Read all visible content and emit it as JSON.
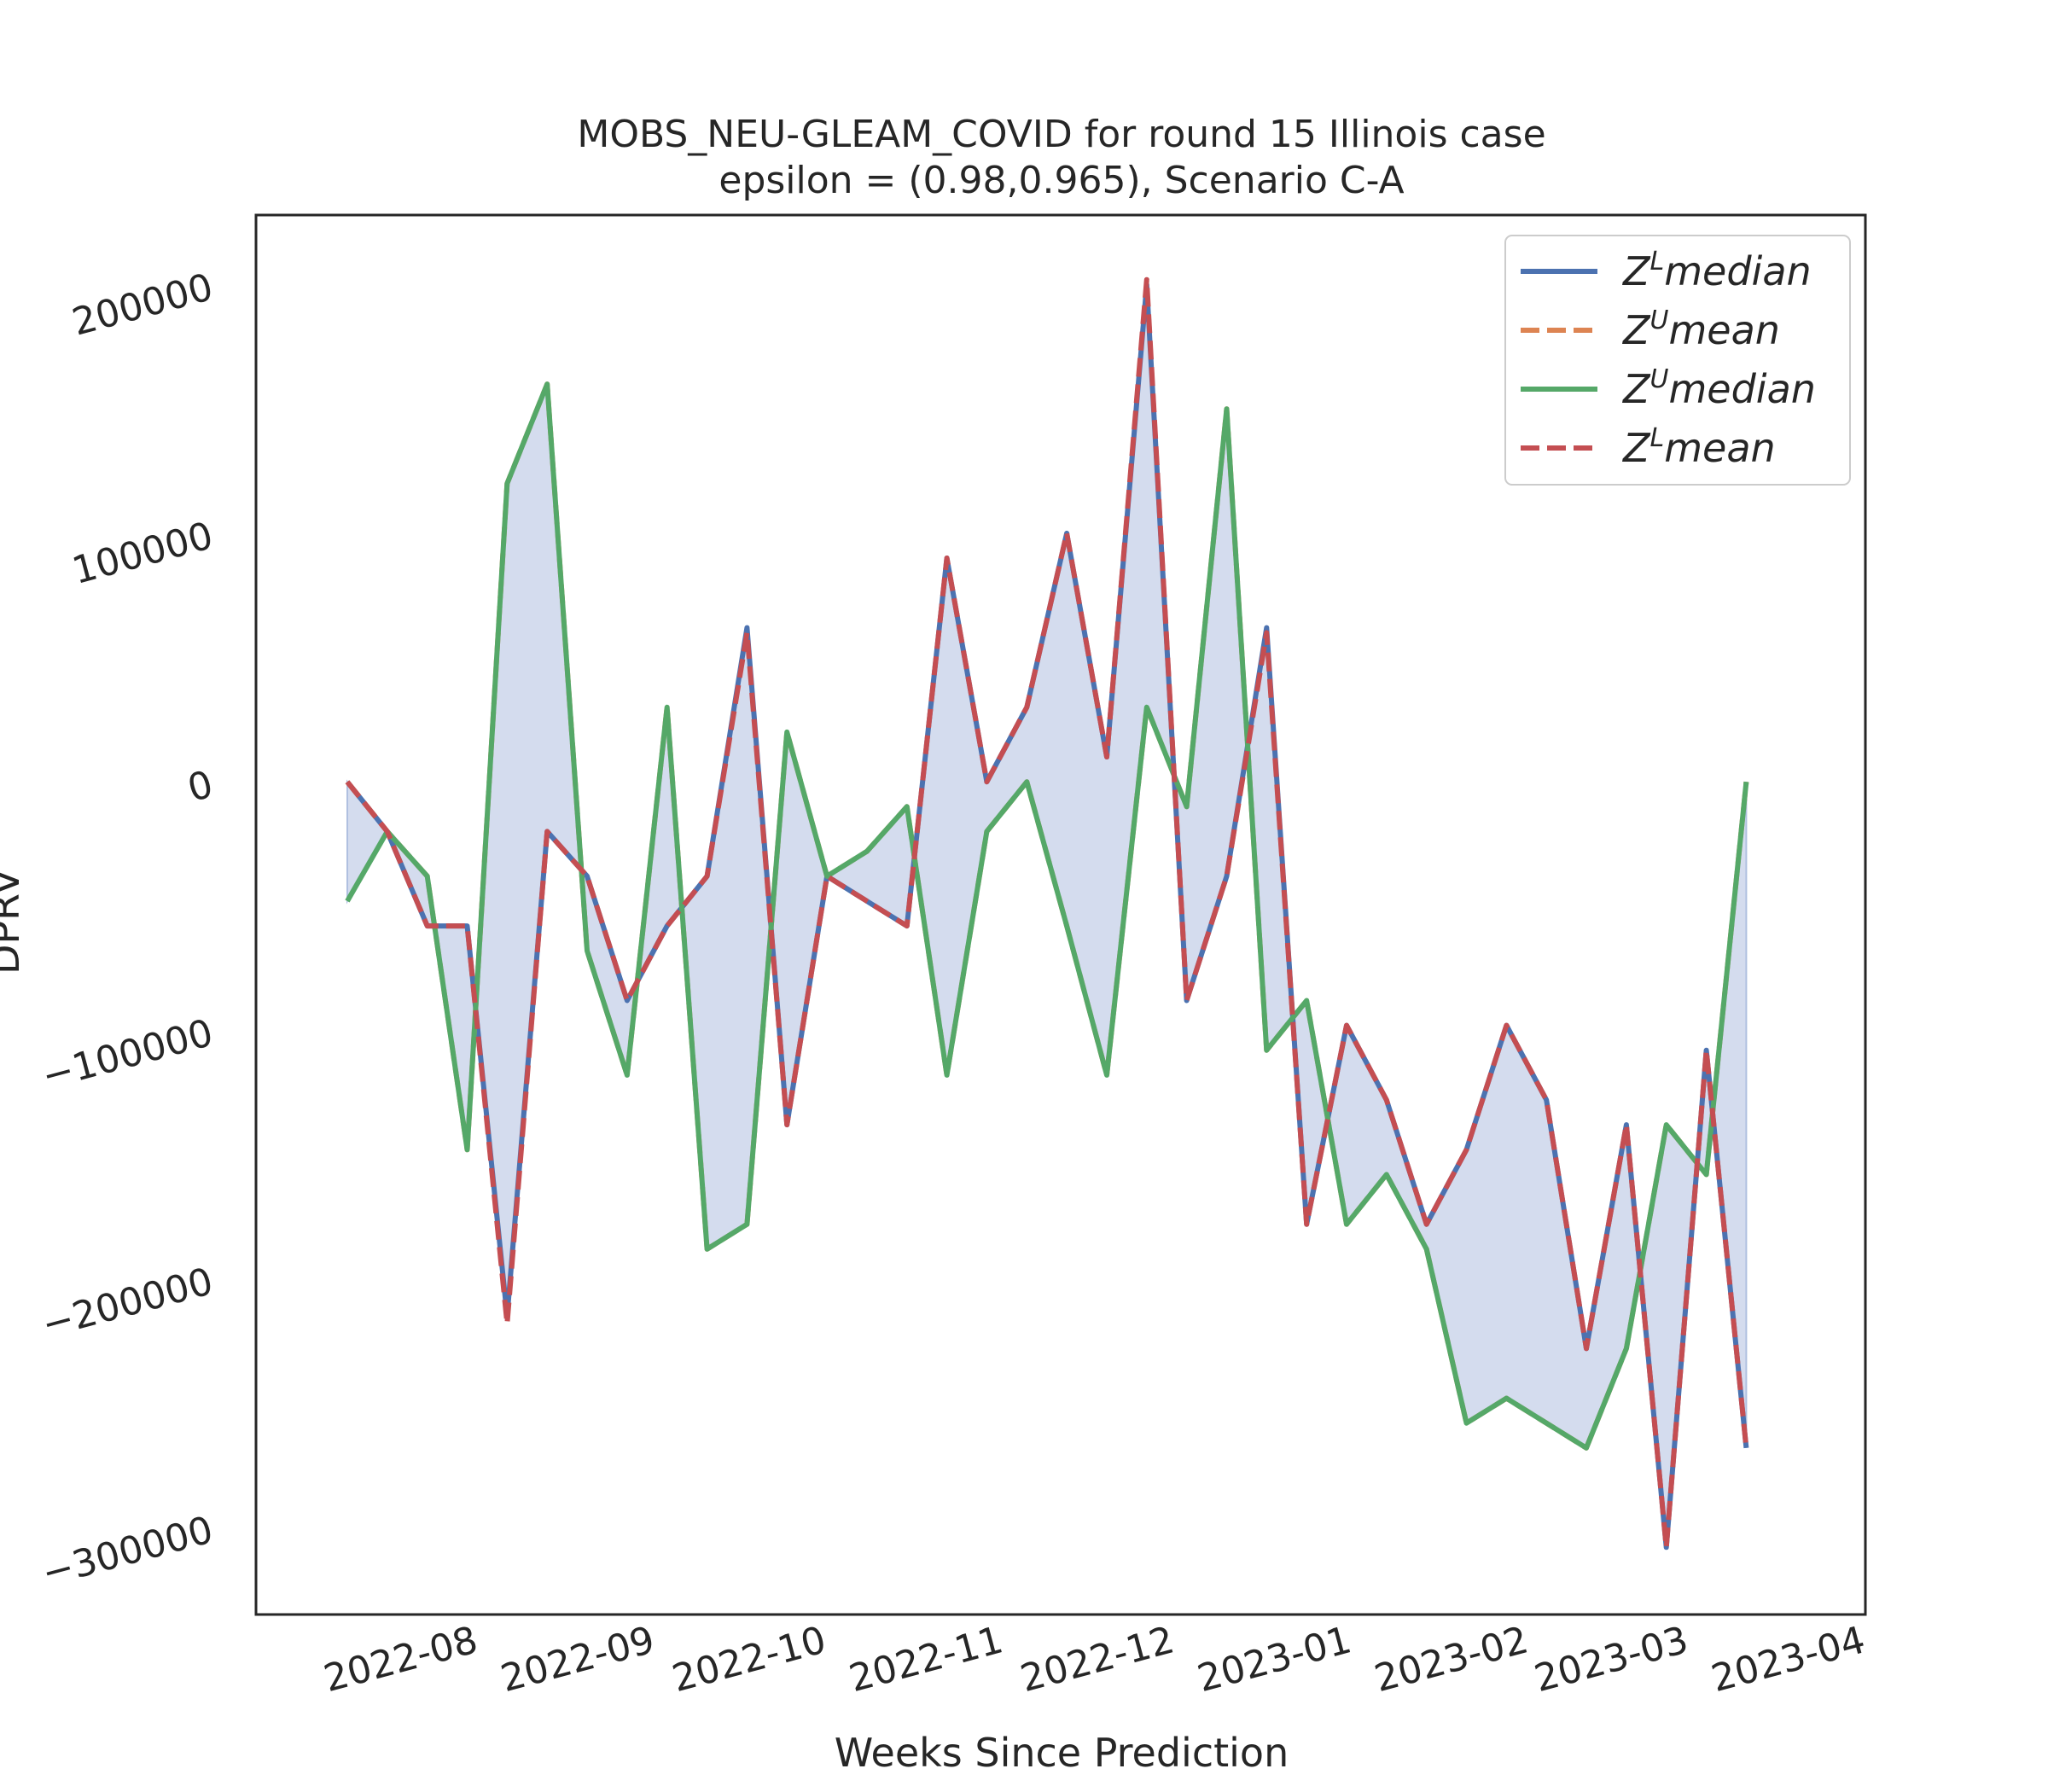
{
  "chart_data": {
    "type": "line",
    "title": "MOBS_NEU-GLEAM_COVID for round 15 Illinois  case",
    "subtitle": "epsilon = (0.98,0.965), Scenario C-A",
    "xlabel": "Weeks Since Prediction",
    "ylabel": "DPRV",
    "x_ticks": [
      "2022-08",
      "2022-09",
      "2022-10",
      "2022-11",
      "2022-12",
      "2023-01",
      "2023-02",
      "2023-03",
      "2023-04"
    ],
    "y_ticks": [
      200000,
      100000,
      0,
      -100000,
      -200000,
      -300000
    ],
    "y_tick_labels": [
      "200000",
      "100000",
      "0",
      "−100000",
      "−200000",
      "−300000"
    ],
    "ylim": [
      -335000,
      228000
    ],
    "x": [
      "2022-07-23",
      "2022-07-30",
      "2022-08-06",
      "2022-08-13",
      "2022-08-20",
      "2022-08-27",
      "2022-09-03",
      "2022-09-10",
      "2022-09-17",
      "2022-09-24",
      "2022-10-01",
      "2022-10-08",
      "2022-10-15",
      "2022-10-22",
      "2022-10-29",
      "2022-11-05",
      "2022-11-12",
      "2022-11-19",
      "2022-11-26",
      "2022-12-03",
      "2022-12-10",
      "2022-12-17",
      "2022-12-24",
      "2022-12-31",
      "2023-01-07",
      "2023-01-14",
      "2023-01-21",
      "2023-01-28",
      "2023-02-04",
      "2023-02-11",
      "2023-02-18",
      "2023-02-25",
      "2023-03-04",
      "2023-03-11",
      "2023-03-18",
      "2023-03-25"
    ],
    "series": [
      {
        "name": "median",
        "sup": "L",
        "color": "#4c72b0",
        "style": "solid",
        "values": [
          0,
          -20000,
          -58000,
          -58000,
          -215000,
          -20000,
          -38000,
          -88000,
          -58000,
          -38000,
          62000,
          -138000,
          -38000,
          -48000,
          -58000,
          90000,
          0,
          30000,
          100000,
          10000,
          200000,
          -88000,
          -38000,
          62000,
          -178000,
          -98000,
          -128000,
          -178000,
          -148000,
          -98000,
          -128000,
          -228000,
          -138000,
          -308000,
          -108000,
          -268000
        ]
      },
      {
        "name": "mean",
        "sup": "U",
        "color": "#dd8452",
        "style": "dashed",
        "values": [
          0,
          -20000,
          -38000,
          -148000,
          120000,
          160000,
          -68000,
          -118000,
          30000,
          -188000,
          -178000,
          20000,
          -38000,
          -28000,
          -10000,
          -118000,
          -20000,
          0,
          -58000,
          -118000,
          30000,
          -10000,
          150000,
          -108000,
          -88000,
          -178000,
          -158000,
          -188000,
          -258000,
          -248000,
          -258000,
          -268000,
          -228000,
          -138000,
          -158000,
          0
        ]
      },
      {
        "name": "median",
        "sup": "U",
        "color": "#55a868",
        "style": "solid",
        "values": [
          -48000,
          -20000,
          -38000,
          -148000,
          120000,
          160000,
          -68000,
          -118000,
          30000,
          -188000,
          -178000,
          20000,
          -38000,
          -28000,
          -10000,
          -118000,
          -20000,
          0,
          -58000,
          -118000,
          30000,
          -10000,
          150000,
          -108000,
          -88000,
          -178000,
          -158000,
          -188000,
          -258000,
          -248000,
          -258000,
          -268000,
          -228000,
          -138000,
          -158000,
          0
        ]
      },
      {
        "name": "mean",
        "sup": "L",
        "color": "#c44e52",
        "style": "dashed",
        "values": [
          0,
          -20000,
          -58000,
          -58000,
          -218000,
          -20000,
          -38000,
          -88000,
          -58000,
          -38000,
          60000,
          -138000,
          -38000,
          -48000,
          -58000,
          90000,
          0,
          30000,
          100000,
          10000,
          202000,
          -88000,
          -38000,
          60000,
          -178000,
          -98000,
          -128000,
          -178000,
          -148000,
          -98000,
          -128000,
          -228000,
          -138000,
          -308000,
          -108000,
          -268000
        ]
      }
    ],
    "fill_between": {
      "lower_series": 0,
      "upper_series": 2,
      "color": "#b0c0e0"
    },
    "grid": false,
    "legend_position": "top-right"
  }
}
